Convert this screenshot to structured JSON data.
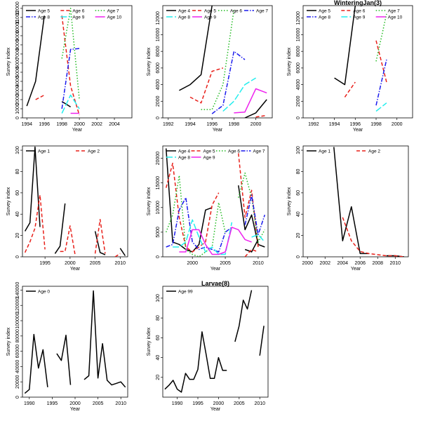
{
  "colors": {
    "black": "#000000",
    "red": "#e8201a",
    "green": "#22bb22",
    "blue": "#1a1aee",
    "cyan": "#22eeee",
    "magenta": "#ee22ee"
  },
  "chart_data": [
    {
      "type": "line",
      "title": "",
      "xlabel": "Year",
      "ylabel": "Survey index",
      "xlim": [
        1993.5,
        2006
      ],
      "ylim": [
        0,
        12300
      ],
      "xticks": [
        1994,
        1996,
        1998,
        2000,
        2002,
        2004
      ],
      "yticks": [
        0,
        1000,
        2000,
        3000,
        4000,
        5000,
        6000,
        7000,
        8000,
        9000,
        10000,
        11000,
        12000
      ],
      "legend": "top-left",
      "legend_cols": 3,
      "series": [
        {
          "name": "Age 5",
          "color": "#000000",
          "dash": "solid",
          "x": [
            1994,
            1995,
            1996,
            null,
            1998,
            1999
          ],
          "y": [
            1300,
            4000,
            11200,
            null,
            1800,
            1200
          ]
        },
        {
          "name": "Age 6",
          "color": "#e8201a",
          "dash": "dashed",
          "x": [
            1995,
            1996,
            null,
            1998,
            1999,
            2000
          ],
          "y": [
            2000,
            2500,
            null,
            11200,
            3500,
            300
          ]
        },
        {
          "name": "Age 7",
          "color": "#22bb22",
          "dash": "dotted",
          "x": [
            1998,
            1999,
            2000
          ],
          "y": [
            6500,
            12000,
            2000
          ]
        },
        {
          "name": "Age 8",
          "color": "#1a1aee",
          "dash": "dashdot",
          "x": [
            1998,
            1999,
            2000
          ],
          "y": [
            1000,
            7500,
            7600
          ]
        },
        {
          "name": "Age 9",
          "color": "#22eeee",
          "dash": "longdash",
          "x": [
            1998,
            1999,
            2000
          ],
          "y": [
            500,
            2500,
            1000
          ]
        },
        {
          "name": "Age 10",
          "color": "#ee22ee",
          "dash": "solid",
          "x": [
            1999,
            2000
          ],
          "y": [
            500,
            500
          ]
        }
      ]
    },
    {
      "type": "line",
      "title": "",
      "xlabel": "Year",
      "ylabel": "Survey index",
      "xlim": [
        1991.5,
        2001.5
      ],
      "ylim": [
        0,
        13500
      ],
      "xticks": [
        1992,
        1994,
        1996,
        1998,
        2000
      ],
      "yticks": [
        0,
        2000,
        4000,
        6000,
        8000,
        10000,
        12000
      ],
      "legend": "top",
      "legend_cols": 4,
      "series": [
        {
          "name": "Age 4",
          "color": "#000000",
          "dash": "solid",
          "x": [
            1993,
            1994,
            1995,
            1996
          ],
          "y": [
            3300,
            4000,
            5200,
            13500
          ]
        },
        {
          "name": "Age 5",
          "color": "#e8201a",
          "dash": "dashed",
          "x": [
            1994,
            1995,
            1996,
            1997
          ],
          "y": [
            2500,
            1800,
            5600,
            6000
          ]
        },
        {
          "name": "Age 6",
          "color": "#22bb22",
          "dash": "dotted",
          "x": [
            1995,
            1996,
            1997,
            1998
          ],
          "y": [
            1000,
            1000,
            4000,
            13000
          ]
        },
        {
          "name": "Age 7",
          "color": "#1a1aee",
          "dash": "dashdot",
          "x": [
            1996,
            1997,
            1998,
            1999
          ],
          "y": [
            500,
            1500,
            8000,
            7000
          ]
        },
        {
          "name": "Age 8",
          "color": "#22eeee",
          "dash": "longdash",
          "x": [
            1997,
            1998,
            1999,
            2000
          ],
          "y": [
            800,
            2000,
            4000,
            4800
          ]
        },
        {
          "name": "Age 9",
          "color": "#ee22ee",
          "dash": "solid",
          "x": [
            1998,
            1999,
            2000,
            2001
          ],
          "y": [
            600,
            700,
            3500,
            3000
          ]
        },
        {
          "name": "",
          "color": "#000000",
          "dash": "solid",
          "x": [
            1999,
            2000,
            2001
          ],
          "y": [
            0,
            600,
            2200
          ]
        },
        {
          "name": "",
          "color": "#e8201a",
          "dash": "dashed",
          "x": [
            2000,
            2001
          ],
          "y": [
            100,
            300
          ]
        }
      ]
    },
    {
      "type": "line",
      "title": "WinteringJan(3)",
      "xlabel": "Year",
      "ylabel": "Survey index",
      "xlim": [
        1991,
        2001.5
      ],
      "ylim": [
        0,
        13500
      ],
      "xticks": [
        1992,
        1994,
        1996,
        1998,
        2000
      ],
      "yticks": [
        0,
        2000,
        4000,
        6000,
        8000,
        10000,
        12000
      ],
      "legend": "top-left",
      "legend_cols": 3,
      "series": [
        {
          "name": "Age 5",
          "color": "#000000",
          "dash": "solid",
          "x": [
            1994,
            1995,
            1996
          ],
          "y": [
            4800,
            4000,
            13500
          ]
        },
        {
          "name": "Age 6",
          "color": "#e8201a",
          "dash": "dashed",
          "x": [
            1995,
            1996,
            null,
            1998,
            1999
          ],
          "y": [
            2500,
            4300,
            null,
            9300,
            4300
          ]
        },
        {
          "name": "Age 7",
          "color": "#22bb22",
          "dash": "dotted",
          "x": [
            1998,
            1999
          ],
          "y": [
            6800,
            12500
          ]
        },
        {
          "name": "Age 8",
          "color": "#1a1aee",
          "dash": "dashdot",
          "x": [
            1998,
            1999
          ],
          "y": [
            1500,
            7000
          ]
        },
        {
          "name": "Age 9",
          "color": "#22eeee",
          "dash": "longdash",
          "x": [
            1998,
            1999
          ],
          "y": [
            800,
            1800
          ]
        },
        {
          "name": "Age 10",
          "color": "#ee22ee",
          "dash": "solid",
          "x": [],
          "y": []
        }
      ]
    },
    {
      "type": "line",
      "title": "",
      "xlabel": "Year",
      "ylabel": "Survey index",
      "xlim": [
        1990.5,
        2011.5
      ],
      "ylim": [
        0,
        104
      ],
      "xticks": [
        1995,
        2000,
        2005,
        2010
      ],
      "yticks": [
        0,
        20,
        40,
        60,
        80,
        100
      ],
      "legend": "top-left",
      "legend_cols": 2,
      "series": [
        {
          "name": "Age 1",
          "color": "#000000",
          "dash": "solid",
          "x": [
            1991,
            1992,
            1993,
            1994,
            null,
            1997,
            1998,
            1999,
            null,
            2005,
            2006,
            2007,
            null,
            2010,
            2011
          ],
          "y": [
            24,
            32,
            103,
            28,
            null,
            3,
            10,
            50,
            null,
            24,
            4,
            2,
            null,
            8,
            1
          ]
        },
        {
          "name": "Age 2",
          "color": "#e8201a",
          "dash": "dashed",
          "x": [
            1991,
            1992,
            1993,
            1994,
            1995,
            null,
            1998,
            1999,
            2000,
            2001,
            null,
            2005,
            2006,
            2007,
            null,
            2009,
            2010
          ],
          "y": [
            4,
            14,
            27,
            58,
            7,
            null,
            5,
            5,
            29,
            2,
            null,
            3,
            35,
            3,
            null,
            0,
            3
          ]
        }
      ]
    },
    {
      "type": "line",
      "title": "",
      "xlabel": "Year",
      "ylabel": "Survey index",
      "xlim": [
        1995.5,
        2011.5
      ],
      "ylim": [
        0,
        22500
      ],
      "xticks": [
        2000,
        2005,
        2010
      ],
      "yticks": [
        0,
        5000,
        10000,
        15000,
        20000
      ],
      "legend": "top",
      "legend_cols": 4,
      "series": [
        {
          "name": "Age 4",
          "color": "#000000",
          "dash": "solid",
          "x": [
            1996,
            1997,
            1998,
            1999,
            2000,
            2001,
            2002,
            2003,
            null,
            2007,
            2008,
            2009,
            2010,
            2011
          ],
          "y": [
            22000,
            3000,
            2500,
            1500,
            1000,
            2500,
            9500,
            10000,
            null,
            14500,
            5500,
            8500,
            2500,
            2000
          ]
        },
        {
          "name": "Age 5",
          "color": "#e8201a",
          "dash": "dashed",
          "x": [
            1996,
            1997,
            1998,
            1999,
            2000,
            2001,
            2002,
            2003,
            2004,
            null,
            2007,
            2008,
            2009,
            2010
          ],
          "y": [
            14000,
            19000,
            8000,
            2000,
            1000,
            2000,
            3000,
            10500,
            13000,
            null,
            21000,
            8000,
            13500,
            2000
          ]
        },
        {
          "name": "Age 6",
          "color": "#22bb22",
          "dash": "dotted",
          "x": [
            1996,
            1997,
            1998,
            1999,
            2000,
            2001,
            2002,
            2003,
            2004,
            2005,
            null,
            2007,
            2008,
            2009,
            2010,
            2011
          ],
          "y": [
            5000,
            8500,
            16500,
            1500,
            500,
            0,
            1000,
            2000,
            11000,
            5000,
            null,
            12000,
            17000,
            12000,
            3000,
            5500
          ]
        },
        {
          "name": "Age 7",
          "color": "#1a1aee",
          "dash": "dashdot",
          "x": [
            1996,
            1997,
            1998,
            1999,
            2000,
            2001,
            2002,
            2003,
            2004,
            2005,
            2006,
            null,
            2008,
            2009,
            2010,
            2011
          ],
          "y": [
            2000,
            2500,
            9500,
            12000,
            3000,
            1500,
            2000,
            1500,
            1000,
            5000,
            6000,
            null,
            6500,
            12500,
            4500,
            8500
          ]
        },
        {
          "name": "Age 8",
          "color": "#22eeee",
          "dash": "longdash",
          "x": [
            1997,
            1998,
            1999,
            2000,
            2001,
            2002,
            2003,
            2004,
            2005,
            2006,
            null,
            2009,
            2010,
            2011
          ],
          "y": [
            2000,
            2000,
            3000,
            7500,
            4000,
            1000,
            2000,
            500,
            500,
            7000,
            null,
            4000,
            4500,
            3000
          ]
        },
        {
          "name": "Age 9",
          "color": "#ee22ee",
          "dash": "solid",
          "x": [
            1998,
            1999,
            2000,
            2001,
            2002,
            2003,
            2004,
            2005,
            2006,
            2007,
            2008,
            2009
          ],
          "y": [
            1000,
            1000,
            5500,
            5500,
            2500,
            500,
            500,
            1000,
            6000,
            5500,
            3500,
            3000
          ]
        },
        {
          "name": "",
          "color": "#000000",
          "dash": "solid",
          "x": [
            2008,
            2009,
            2010
          ],
          "y": [
            1500,
            1000,
            3500
          ]
        },
        {
          "name": "",
          "color": "#e8201a",
          "dash": "dashed",
          "x": [
            2008,
            2009,
            2010
          ],
          "y": [
            0,
            1500,
            1000
          ]
        }
      ]
    },
    {
      "type": "line",
      "title": "",
      "xlabel": "Year",
      "ylabel": "Survey index",
      "xlim": [
        1999.5,
        2011.5
      ],
      "ylim": [
        0,
        104
      ],
      "xticks": [
        2000,
        2002,
        2004,
        2006,
        2008,
        2010
      ],
      "yticks": [
        0,
        20,
        40,
        60,
        80,
        100
      ],
      "legend": "top-left",
      "legend_cols": 2,
      "series": [
        {
          "name": "Age 1",
          "color": "#000000",
          "dash": "solid",
          "x": [
            2003,
            2004,
            2005,
            2006,
            2007,
            null,
            2009,
            2010,
            2011
          ],
          "y": [
            103,
            15,
            47,
            3,
            3,
            null,
            1,
            1,
            0
          ]
        },
        {
          "name": "Age 2",
          "color": "#e8201a",
          "dash": "dashed",
          "x": [
            2004,
            2005,
            2006,
            2007,
            2008,
            2009,
            2010,
            2011
          ],
          "y": [
            37,
            15,
            5,
            3,
            2,
            1,
            1,
            0
          ]
        }
      ]
    },
    {
      "type": "line",
      "title": "",
      "xlabel": "Year",
      "ylabel": "Survey index",
      "xlim": [
        1988.5,
        2011.5
      ],
      "ylim": [
        0,
        145000
      ],
      "xticks": [
        1990,
        1995,
        2000,
        2005,
        2010
      ],
      "yticks": [
        0,
        20000,
        40000,
        60000,
        80000,
        100000,
        120000,
        140000
      ],
      "legend": "top-left",
      "legend_cols": 1,
      "series": [
        {
          "name": "Age 0",
          "color": "#000000",
          "dash": "solid",
          "x": [
            1989,
            1990,
            1991,
            1992,
            1993,
            1994,
            null,
            1996,
            1997,
            1998,
            1999,
            null,
            2002,
            2003,
            2004,
            2005,
            2006,
            2007,
            2008,
            2009,
            2010,
            2011
          ],
          "y": [
            5000,
            10000,
            82000,
            38000,
            62000,
            13000,
            null,
            57000,
            48000,
            81000,
            16000,
            null,
            23000,
            28000,
            139000,
            25000,
            70000,
            22000,
            16000,
            18000,
            20000,
            13000
          ]
        }
      ]
    },
    {
      "type": "line",
      "title": "Larvae(8)",
      "xlabel": "Year",
      "ylabel": "Survey index",
      "xlim": [
        1986.5,
        2012
      ],
      "ylim": [
        0,
        112
      ],
      "xticks": [
        1990,
        1995,
        2000,
        2005,
        2010
      ],
      "yticks": [
        20,
        40,
        60,
        80,
        100
      ],
      "legend": "top-left",
      "legend_cols": 1,
      "series": [
        {
          "name": "Age 99",
          "color": "#000000",
          "dash": "solid",
          "x": [
            1987,
            1988,
            1989,
            1990,
            1991,
            1992,
            1993,
            1994,
            1995,
            1996,
            1997,
            1998,
            1999,
            2000,
            2001,
            2002,
            null,
            2004,
            2005,
            2006,
            2007,
            2008,
            null,
            2010,
            2011
          ],
          "y": [
            8,
            12,
            17,
            8,
            5,
            24,
            18,
            18,
            28,
            66,
            43,
            19,
            19,
            40,
            27,
            27,
            null,
            56,
            72,
            98,
            89,
            108,
            null,
            42,
            72
          ]
        }
      ]
    }
  ]
}
